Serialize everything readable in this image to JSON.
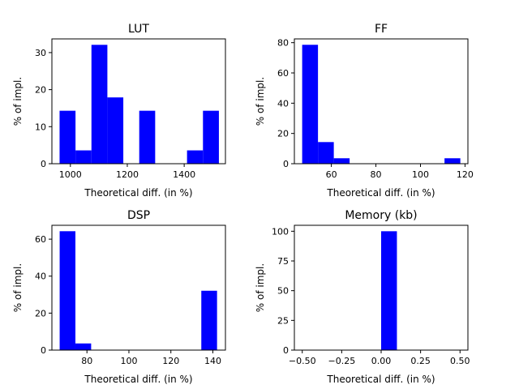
{
  "chart_data": [
    {
      "type": "bar",
      "title": "LUT",
      "xlabel": "Theoretical diff. (in %)",
      "ylabel": "% of impl.",
      "xlim": [
        935,
        1545
      ],
      "ylim": [
        0,
        33.7
      ],
      "xticks": [
        1000,
        1200,
        1400
      ],
      "yticks": [
        0,
        10,
        20,
        30
      ],
      "bar_color": "#0000ff",
      "bins": [
        {
          "x0": 962,
          "x1": 1018,
          "value": 14.3
        },
        {
          "x0": 1018,
          "x1": 1074,
          "value": 3.6
        },
        {
          "x0": 1074,
          "x1": 1130,
          "value": 32.1
        },
        {
          "x0": 1130,
          "x1": 1186,
          "value": 17.9
        },
        {
          "x0": 1186,
          "x1": 1242,
          "value": 0
        },
        {
          "x0": 1242,
          "x1": 1298,
          "value": 14.3
        },
        {
          "x0": 1298,
          "x1": 1354,
          "value": 0
        },
        {
          "x0": 1354,
          "x1": 1410,
          "value": 0
        },
        {
          "x0": 1410,
          "x1": 1466,
          "value": 3.6
        },
        {
          "x0": 1466,
          "x1": 1522,
          "value": 14.3
        }
      ]
    },
    {
      "type": "bar",
      "title": "FF",
      "xlabel": "Theoretical diff. (in %)",
      "ylabel": "% of impl.",
      "xlim": [
        43.4,
        121.3
      ],
      "ylim": [
        0,
        82.5
      ],
      "xticks": [
        60,
        80,
        100,
        120
      ],
      "yticks": [
        0,
        20,
        40,
        60,
        80
      ],
      "bar_color": "#0000ff",
      "bins": [
        {
          "x0": 46.9,
          "x1": 54.0,
          "value": 78.6
        },
        {
          "x0": 54.0,
          "x1": 61.1,
          "value": 14.3
        },
        {
          "x0": 61.1,
          "x1": 68.2,
          "value": 3.6
        },
        {
          "x0": 68.2,
          "x1": 75.3,
          "value": 0
        },
        {
          "x0": 75.3,
          "x1": 82.4,
          "value": 0
        },
        {
          "x0": 82.4,
          "x1": 89.5,
          "value": 0
        },
        {
          "x0": 89.5,
          "x1": 96.6,
          "value": 0
        },
        {
          "x0": 96.6,
          "x1": 103.7,
          "value": 0
        },
        {
          "x0": 103.7,
          "x1": 110.8,
          "value": 0
        },
        {
          "x0": 110.8,
          "x1": 117.9,
          "value": 3.6
        }
      ]
    },
    {
      "type": "bar",
      "title": "DSP",
      "xlabel": "Theoretical diff. (in %)",
      "ylabel": "% of impl.",
      "xlim": [
        63.3,
        146.0
      ],
      "ylim": [
        0,
        67.5
      ],
      "xticks": [
        80,
        100,
        120,
        140
      ],
      "yticks": [
        0,
        20,
        40,
        60
      ],
      "bar_color": "#0000ff",
      "bins": [
        {
          "x0": 67.0,
          "x1": 74.5,
          "value": 64.3
        },
        {
          "x0": 74.5,
          "x1": 82.0,
          "value": 3.6
        },
        {
          "x0": 82.0,
          "x1": 89.5,
          "value": 0
        },
        {
          "x0": 89.5,
          "x1": 97.0,
          "value": 0
        },
        {
          "x0": 97.0,
          "x1": 104.5,
          "value": 0
        },
        {
          "x0": 104.5,
          "x1": 112.0,
          "value": 0
        },
        {
          "x0": 112.0,
          "x1": 119.5,
          "value": 0
        },
        {
          "x0": 119.5,
          "x1": 127.0,
          "value": 0
        },
        {
          "x0": 127.0,
          "x1": 134.5,
          "value": 0
        },
        {
          "x0": 134.5,
          "x1": 142.0,
          "value": 32.1
        }
      ]
    },
    {
      "type": "bar",
      "title": "Memory (kb)",
      "xlabel": "Theoretical diff. (in %)",
      "ylabel": "% of impl.",
      "xlim": [
        -0.55,
        0.55
      ],
      "ylim": [
        0,
        105
      ],
      "xticks": [
        -0.5,
        -0.25,
        0.0,
        0.25,
        0.5
      ],
      "xtick_labels": [
        "−0.50",
        "−0.25",
        "0.00",
        "0.25",
        "0.50"
      ],
      "yticks": [
        0,
        25,
        50,
        75,
        100
      ],
      "bar_color": "#0000ff",
      "bins": [
        {
          "x0": -0.5,
          "x1": -0.4,
          "value": 0
        },
        {
          "x0": -0.4,
          "x1": -0.3,
          "value": 0
        },
        {
          "x0": -0.3,
          "x1": -0.2,
          "value": 0
        },
        {
          "x0": -0.2,
          "x1": -0.1,
          "value": 0
        },
        {
          "x0": -0.1,
          "x1": 0.0,
          "value": 0
        },
        {
          "x0": 0.0,
          "x1": 0.1,
          "value": 100
        },
        {
          "x0": 0.1,
          "x1": 0.2,
          "value": 0
        },
        {
          "x0": 0.2,
          "x1": 0.3,
          "value": 0
        },
        {
          "x0": 0.3,
          "x1": 0.4,
          "value": 0
        },
        {
          "x0": 0.4,
          "x1": 0.5,
          "value": 0
        }
      ]
    }
  ]
}
